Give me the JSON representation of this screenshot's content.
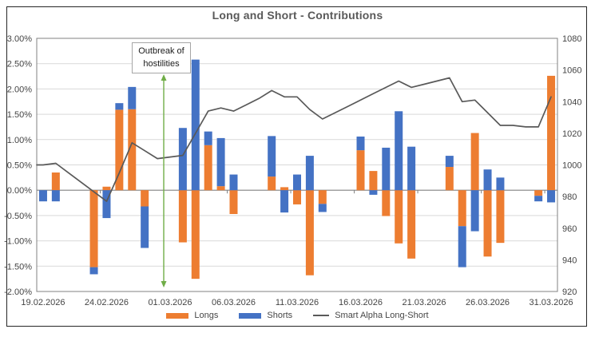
{
  "title": "Long and Short - Contributions",
  "annotation": {
    "line1": "Outbreak of",
    "line2": "hostilities",
    "marks_date": "01.03.2026"
  },
  "legend": {
    "items": [
      {
        "label": "Longs",
        "color": "#ED7D31",
        "type": "bar"
      },
      {
        "label": "Shorts",
        "color": "#4472C4",
        "type": "bar"
      },
      {
        "label": "Smart Alpha Long-Short",
        "color": "#595959",
        "type": "line"
      }
    ]
  },
  "axes": {
    "left_labels": [
      "3.00%",
      "2.50%",
      "2.00%",
      "1.50%",
      "1.00%",
      "0.50%",
      "0.00%",
      "-0.50%",
      "-1.00%",
      "-1.50%",
      "-2.00%"
    ],
    "right_labels": [
      "1080",
      "1060",
      "1040",
      "1020",
      "1000",
      "980",
      "960",
      "940",
      "920"
    ],
    "x_labels": [
      "19.02.2026",
      "24.02.2026",
      "01.03.2026",
      "06.03.2026",
      "11.03.2026",
      "16.03.2026",
      "21.03.2026",
      "26.03.2026",
      "31.03.2026"
    ]
  },
  "colors": {
    "longs": "#ED7D31",
    "shorts": "#4472C4",
    "alpha_line": "#595959",
    "grid": "#D9D9D9",
    "axis": "#808080",
    "arrow": "#70AD47",
    "tick_text": "#444444"
  },
  "chart_data": {
    "type": "combo: stacked bar + line (secondary axis)",
    "title": "Long and Short - Contributions",
    "left_axis": {
      "min": -2.0,
      "max": 3.0,
      "step": 0.5,
      "format": "percent"
    },
    "right_axis": {
      "min": 920,
      "max": 1080,
      "step": 20
    },
    "grid": true,
    "legend_position": "bottom",
    "x_label_interval": 5,
    "x": [
      "19.02.2026",
      "20.02.2026",
      "21.02.2026",
      "22.02.2026",
      "23.02.2026",
      "24.02.2026",
      "25.02.2026",
      "26.02.2026",
      "27.02.2026",
      "28.02.2026",
      "01.03.2026",
      "02.03.2026",
      "03.03.2026",
      "04.03.2026",
      "05.03.2026",
      "06.03.2026",
      "07.03.2026",
      "08.03.2026",
      "09.03.2026",
      "10.03.2026",
      "11.03.2026",
      "12.03.2026",
      "13.03.2026",
      "14.03.2026",
      "15.03.2026",
      "16.03.2026",
      "17.03.2026",
      "18.03.2026",
      "19.03.2026",
      "20.03.2026",
      "21.03.2026",
      "22.03.2026",
      "23.03.2026",
      "24.03.2026",
      "25.03.2026",
      "26.03.2026",
      "27.03.2026",
      "28.03.2026",
      "29.03.2026",
      "30.03.2026",
      "31.03.2026"
    ],
    "series": [
      {
        "name": "Longs",
        "type": "bar",
        "axis": "left",
        "color": "#ED7D31",
        "values": [
          0,
          0.35,
          0,
          0,
          -1.52,
          0.07,
          1.59,
          1.6,
          -0.32,
          0,
          0,
          -1.03,
          -1.75,
          0.89,
          0.08,
          -0.47,
          0,
          0,
          0.27,
          0.06,
          -0.28,
          -1.68,
          -0.27,
          0,
          0,
          0.79,
          0.38,
          -0.51,
          -1.05,
          -1.35,
          0,
          0,
          0.46,
          -0.71,
          1.13,
          -1.31,
          -1.04,
          0,
          0,
          -0.11,
          2.26
        ]
      },
      {
        "name": "Shorts",
        "type": "bar",
        "axis": "left",
        "color": "#4472C4",
        "values": [
          -0.22,
          -0.22,
          0,
          0,
          -0.14,
          -0.55,
          0.13,
          0.44,
          -0.82,
          0,
          0,
          1.23,
          2.58,
          0.27,
          0.95,
          0.31,
          0,
          0,
          0.8,
          -0.44,
          0.31,
          0.68,
          -0.16,
          0,
          0,
          0.27,
          -0.09,
          0.84,
          1.56,
          0.86,
          0,
          0,
          0.22,
          -0.81,
          -0.81,
          0.41,
          0.25,
          0,
          0,
          -0.11,
          -0.24
        ]
      },
      {
        "name": "Smart Alpha Long-Short",
        "type": "line",
        "axis": "right",
        "color": "#595959",
        "values": [
          1000,
          1001,
          995,
          989,
          983,
          977,
          995,
          1014,
          1009,
          1004,
          1005,
          1006,
          1020,
          1034,
          1036,
          1034,
          1038,
          1042,
          1047,
          1043,
          1043,
          1035,
          1029,
          1033,
          1037,
          1041,
          1045,
          1049,
          1053,
          1049,
          1051,
          1053,
          1055,
          1040,
          1041,
          1033,
          1025,
          1025,
          1024,
          1024,
          1043
        ]
      }
    ]
  }
}
